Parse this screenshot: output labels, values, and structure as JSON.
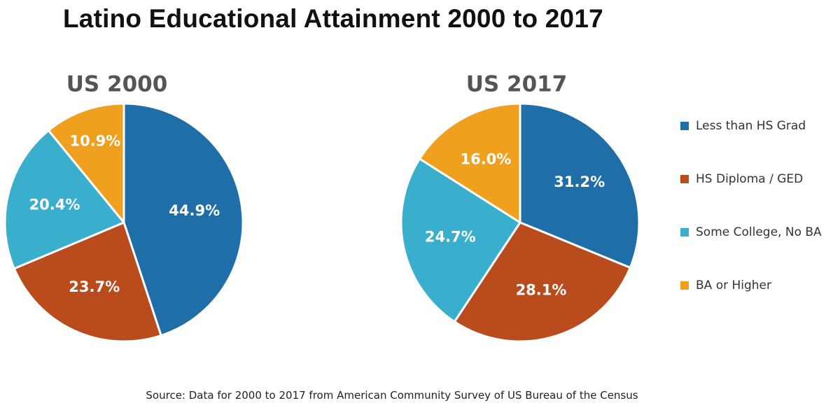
{
  "title": "Latino Educational Attainment 2000 to 2017",
  "source": "Source: Data for 2000 to 2017 from American Community Survey of US Bureau of the Census",
  "colors": {
    "less_than_hs": "#1f6ea8",
    "hs_diploma": "#b94b1c",
    "some_college": "#3aaecd",
    "ba_or_higher": "#efa01f",
    "slice_label": "#ffffff"
  },
  "legend": {
    "placement": "right",
    "items": [
      {
        "label": "Less than HS Grad",
        "color": "#1f6ea8"
      },
      {
        "label": "HS Diploma / GED",
        "color": "#b94b1c"
      },
      {
        "label": "Some College, No BA",
        "color": "#3aaecd"
      },
      {
        "label": "BA or Higher",
        "color": "#efa01f"
      }
    ]
  },
  "chart_data": [
    {
      "type": "pie",
      "title": "US 2000",
      "categories": [
        "Less than HS Grad",
        "HS Diploma / GED",
        "Some College, No BA",
        "BA or Higher"
      ],
      "values": [
        44.9,
        23.7,
        20.4,
        10.9
      ],
      "labels": [
        "44.9%",
        "23.7%",
        "20.4%",
        "10.9%"
      ]
    },
    {
      "type": "pie",
      "title": "US 2017",
      "categories": [
        "Less than HS Grad",
        "HS Diploma / GED",
        "Some College, No BA",
        "BA or Higher"
      ],
      "values": [
        31.2,
        28.1,
        24.7,
        16.0
      ],
      "labels": [
        "31.2%",
        "28.1%",
        "24.7%",
        "16.0%"
      ]
    }
  ]
}
